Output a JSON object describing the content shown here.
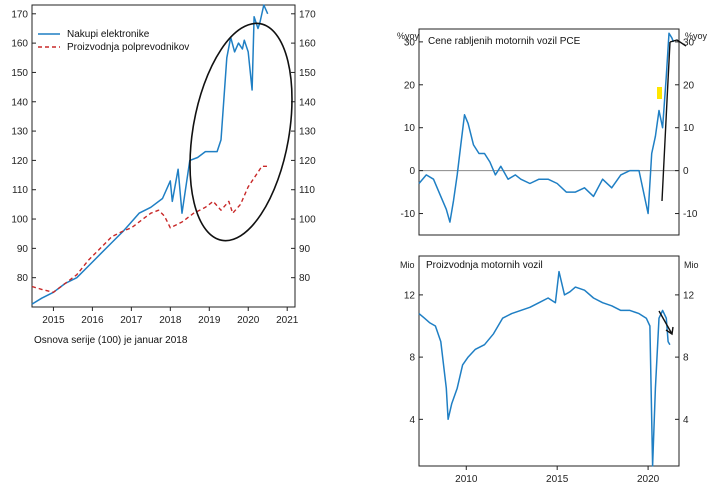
{
  "chart_data": [
    {
      "id": "left",
      "type": "line",
      "title": "",
      "xlim": [
        2014.45,
        2021.2
      ],
      "ylim": [
        70,
        173
      ],
      "x_ticks": [
        "2015",
        "2016",
        "2017",
        "2018",
        "2019",
        "2020",
        "2021"
      ],
      "y_ticks_left": [
        "80",
        "90",
        "100",
        "110",
        "120",
        "130",
        "140",
        "150",
        "160",
        "170"
      ],
      "y_ticks_right": [
        "80",
        "90",
        "100",
        "110",
        "120",
        "130",
        "140",
        "150",
        "160",
        "170"
      ],
      "legend": [
        "Nakupi elektronike",
        "Proizvodnja polprevodnikov"
      ],
      "note": "Osnova serije (100) je januar 2018",
      "series": [
        {
          "name": "Nakupi elektronike",
          "color": "#1f7fc4",
          "style": "solid",
          "x": [
            2014.45,
            2014.7,
            2015.0,
            2015.3,
            2015.6,
            2015.9,
            2016.2,
            2016.5,
            2016.8,
            2017.0,
            2017.2,
            2017.5,
            2017.8,
            2018.0,
            2018.05,
            2018.2,
            2018.3,
            2018.5,
            2018.7,
            2018.9,
            2019.2,
            2019.3,
            2019.45,
            2019.55,
            2019.65,
            2019.75,
            2019.85,
            2019.9,
            2020.0,
            2020.1,
            2020.15,
            2020.25,
            2020.3,
            2020.4,
            2020.5
          ],
          "values": [
            71,
            73,
            75,
            78,
            80,
            84,
            88,
            92,
            96,
            99,
            102,
            104,
            107,
            113,
            106,
            117,
            102,
            120,
            121,
            123,
            123,
            127,
            155,
            162,
            157,
            160,
            158,
            161,
            157,
            144,
            169,
            165,
            167,
            173,
            170
          ]
        },
        {
          "name": "Proizvodnja polprevodnikov",
          "color": "#c82828",
          "style": "dashed",
          "x": [
            2014.45,
            2014.7,
            2015.0,
            2015.3,
            2015.6,
            2015.9,
            2016.2,
            2016.5,
            2016.8,
            2017.0,
            2017.1,
            2017.3,
            2017.5,
            2017.7,
            2017.85,
            2018.0,
            2018.3,
            2018.6,
            2018.9,
            2019.1,
            2019.3,
            2019.5,
            2019.6,
            2019.8,
            2020.0,
            2020.2,
            2020.35,
            2020.5
          ],
          "values": [
            77,
            76,
            75,
            78,
            81,
            86,
            90,
            94,
            96,
            97,
            98,
            100,
            102,
            103,
            101,
            97,
            99,
            102,
            104,
            106,
            103,
            106,
            102,
            105,
            111,
            115,
            118,
            118
          ]
        }
      ]
    },
    {
      "id": "top-right",
      "type": "line",
      "title": "Cene rabljenih motornih vozil PCE",
      "ylabel_left": "%yoy",
      "ylabel_right": "%yoy",
      "xlim": [
        2007.4,
        2021.7
      ],
      "ylim": [
        -15,
        33
      ],
      "y_ticks_left": [
        "-10",
        "0",
        "10",
        "20",
        "30"
      ],
      "y_ticks_right": [
        "-10",
        "0",
        "10",
        "20",
        "30"
      ],
      "series": [
        {
          "name": "",
          "color": "#1f7fc4",
          "x": [
            2007.4,
            2007.8,
            2008.2,
            2008.6,
            2008.9,
            2009.1,
            2009.3,
            2009.5,
            2009.7,
            2009.9,
            2010.1,
            2010.4,
            2010.7,
            2011.0,
            2011.3,
            2011.6,
            2011.9,
            2012.3,
            2012.7,
            2013.0,
            2013.5,
            2014.0,
            2014.5,
            2015.0,
            2015.5,
            2016.0,
            2016.5,
            2017.0,
            2017.5,
            2018.0,
            2018.5,
            2019.0,
            2019.5,
            2020.0,
            2020.2,
            2020.4,
            2020.6,
            2020.8,
            2021.0,
            2021.15,
            2021.3,
            2021.4
          ],
          "values": [
            -3,
            -1,
            -2,
            -6,
            -9,
            -12,
            -7,
            -1,
            6,
            13,
            11,
            6,
            4,
            4,
            2,
            -1,
            1,
            -2,
            -1,
            -2,
            -3,
            -2,
            -2,
            -3,
            -5,
            -5,
            -4,
            -6,
            -2,
            -4,
            -1,
            0,
            0,
            -10,
            4,
            8,
            14,
            10,
            22,
            32,
            31,
            30
          ]
        }
      ]
    },
    {
      "id": "bottom-right",
      "type": "line",
      "title": "Proizvodnja motornih vozil",
      "ylabel_left": "Mio",
      "ylabel_right": "Mio",
      "xlim": [
        2007.4,
        2021.7
      ],
      "ylim": [
        1,
        14.5
      ],
      "x_ticks": [
        "2010",
        "2015",
        "2020"
      ],
      "y_ticks_left": [
        "4",
        "8",
        "12"
      ],
      "y_ticks_right": [
        "4",
        "8",
        "12"
      ],
      "series": [
        {
          "name": "",
          "color": "#1f7fc4",
          "x": [
            2007.4,
            2007.7,
            2008.0,
            2008.3,
            2008.6,
            2008.9,
            2009.0,
            2009.2,
            2009.5,
            2009.8,
            2010.1,
            2010.5,
            2011.0,
            2011.5,
            2012.0,
            2012.5,
            2013.0,
            2013.5,
            2014.0,
            2014.5,
            2014.9,
            2015.1,
            2015.4,
            2015.7,
            2016.0,
            2016.5,
            2017.0,
            2017.5,
            2018.0,
            2018.5,
            2019.0,
            2019.5,
            2019.9,
            2020.1,
            2020.25,
            2020.4,
            2020.6,
            2020.8,
            2021.0,
            2021.1,
            2021.2
          ],
          "values": [
            10.8,
            10.5,
            10.2,
            10.0,
            9.0,
            6.0,
            4.0,
            5.0,
            6.0,
            7.5,
            8.0,
            8.5,
            8.8,
            9.5,
            10.5,
            10.8,
            11.0,
            11.2,
            11.5,
            11.8,
            11.5,
            13.5,
            12.0,
            12.2,
            12.5,
            12.3,
            11.8,
            11.5,
            11.3,
            11.0,
            11.0,
            10.8,
            10.5,
            10.0,
            1.0,
            6.0,
            10.5,
            11.0,
            10.5,
            9.0,
            8.8
          ]
        }
      ]
    }
  ]
}
